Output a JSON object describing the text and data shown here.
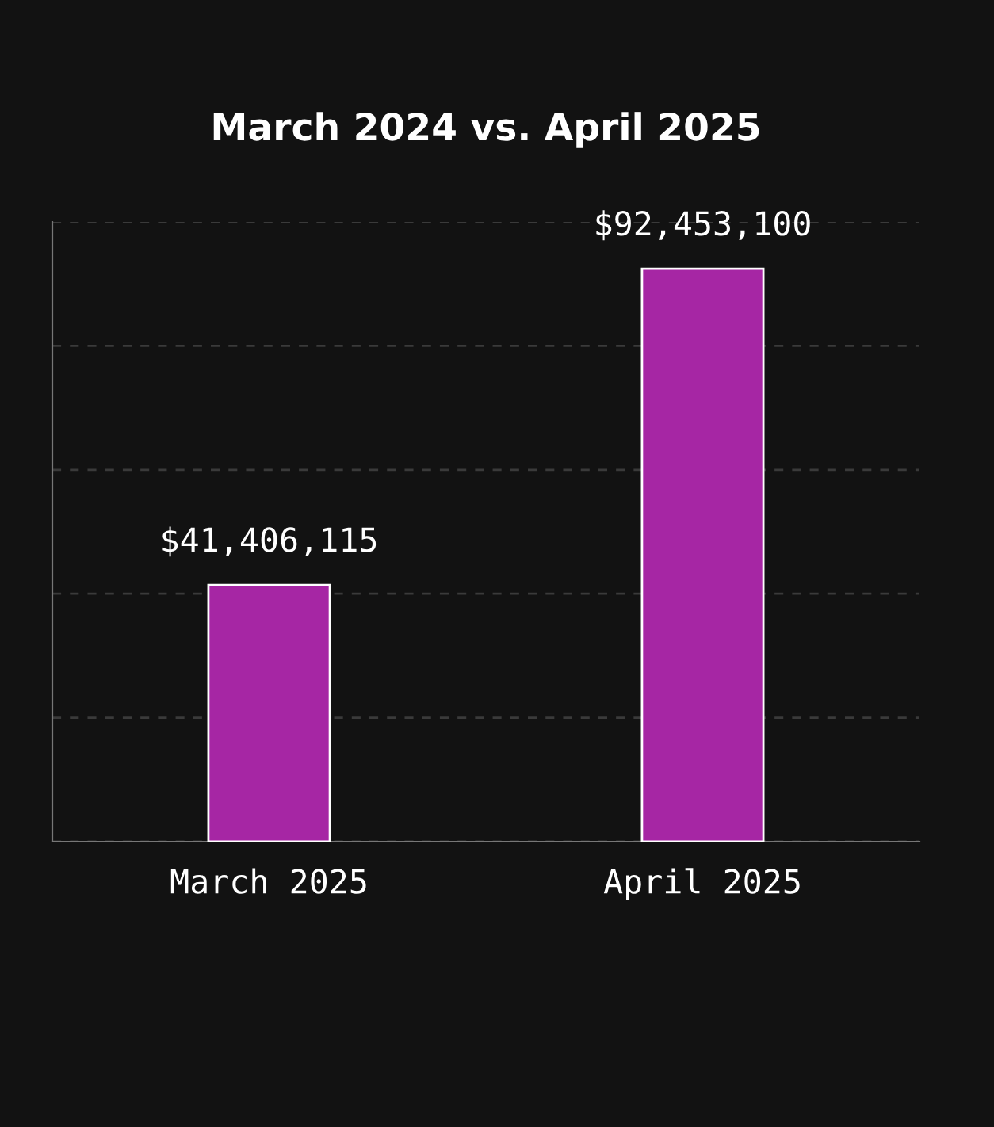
{
  "chart_data": {
    "type": "bar",
    "title": "March 2024 vs. April 2025",
    "categories": [
      "March 2025",
      "April 2025"
    ],
    "values": [
      41406115,
      92453100
    ],
    "value_labels": [
      "$41,406,115",
      "$92,453,100"
    ],
    "color": "#a626a4",
    "ylim": [
      0,
      100000000
    ],
    "yticks": [
      {
        "value": 0,
        "label": null
      },
      {
        "value": 20000000,
        "label": null
      },
      {
        "value": 40000000,
        "label": null
      },
      {
        "value": 60000000,
        "label": null
      },
      {
        "value": 80000000,
        "label": null
      },
      {
        "value": 100000000,
        "label": null
      }
    ],
    "grid": "y"
  }
}
